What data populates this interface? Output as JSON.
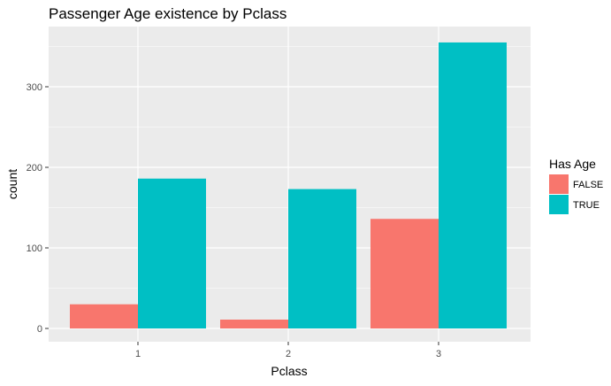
{
  "chart_data": {
    "type": "bar",
    "title": "Passenger Age existence by Pclass",
    "xlabel": "Pclass",
    "ylabel": "count",
    "categories": [
      "1",
      "2",
      "3"
    ],
    "series": [
      {
        "name": "FALSE",
        "color": "#F8766D",
        "values": [
          30,
          11,
          136
        ]
      },
      {
        "name": "TRUE",
        "color": "#00BFC4",
        "values": [
          186,
          173,
          355
        ]
      }
    ],
    "ylim": [
      0,
      372
    ],
    "yticks": [
      0,
      100,
      200,
      300
    ],
    "ytick_labels": [
      "0",
      "100",
      "200",
      "300"
    ],
    "grid": true,
    "legend": {
      "title": "Has Age",
      "placement": "right"
    },
    "panel_background": "#EBEBEB",
    "grid_color": "#FFFFFF"
  }
}
